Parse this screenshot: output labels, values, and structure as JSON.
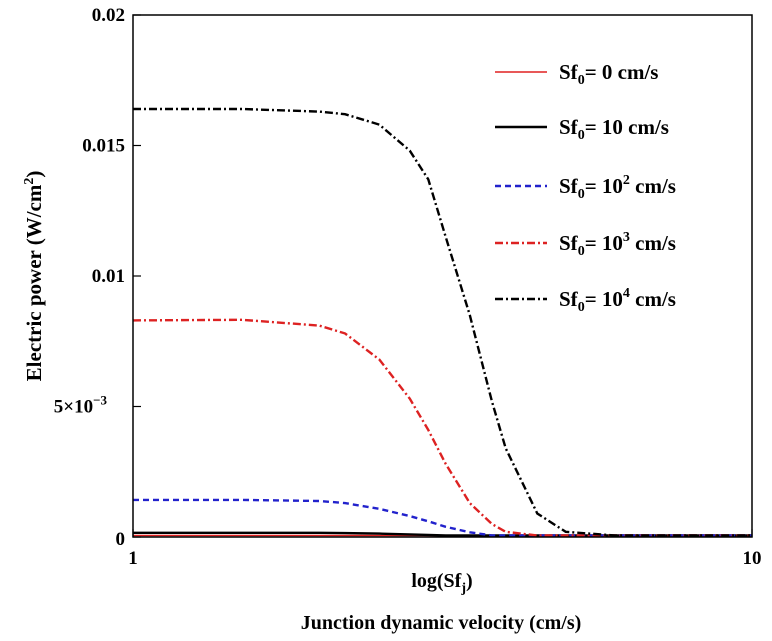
{
  "chart_data": {
    "type": "line",
    "xscale": "log",
    "xlim": [
      1,
      10
    ],
    "ylim": [
      0,
      0.02
    ],
    "xticks": [
      {
        "value": 1,
        "label": "1"
      },
      {
        "value": 10,
        "label": "10"
      }
    ],
    "yticks": [
      {
        "value": 0,
        "label": "0"
      },
      {
        "value": 0.005,
        "label": "5×10",
        "sup": "−3"
      },
      {
        "value": 0.01,
        "label": "0.01"
      },
      {
        "value": 0.015,
        "label": "0.015"
      },
      {
        "value": 0.02,
        "label": "0.02"
      }
    ],
    "xlabel": {
      "base": "log(Sf",
      "sub": "j",
      "end": ")"
    },
    "xcaption": "Junction dynamic velocity (cm/s)",
    "ylabel": {
      "pre": "Electric power (W/cm",
      "sup": "2",
      "end": ")"
    },
    "grid": false,
    "legend_position": "top-right",
    "x": [
      1,
      1.5,
      2,
      2.2,
      2.5,
      2.8,
      3,
      3.2,
      3.5,
      3.8,
      4,
      4.5,
      5,
      6,
      8,
      10
    ],
    "series": [
      {
        "name": {
          "pre": "Sf",
          "sub": "0",
          "post": "= 0 cm/s",
          "sup": ""
        },
        "color": "#e02020",
        "dash": "solid",
        "width": 1.4,
        "values": [
          0,
          0,
          0,
          0,
          0,
          0,
          0,
          0,
          0,
          0,
          0,
          0,
          0,
          0,
          0,
          0
        ]
      },
      {
        "name": {
          "pre": "Sf",
          "sub": "0",
          "post": "= 10 cm/s",
          "sup": ""
        },
        "color": "#000000",
        "dash": "solid",
        "width": 2.4,
        "values": [
          0.00016,
          0.00016,
          0.00016,
          0.00015,
          0.00013,
          0.0001,
          8e-05,
          5e-05,
          3e-05,
          1e-05,
          5e-06,
          0,
          0,
          0,
          0,
          0
        ]
      },
      {
        "name": {
          "pre": "Sf",
          "sub": "0",
          "post": " cm/s",
          "base": "= 10",
          "sup": "2"
        },
        "color": "#2222cc",
        "dash": "6,4",
        "width": 2.4,
        "values": [
          0.00142,
          0.00142,
          0.00138,
          0.0013,
          0.00108,
          0.0008,
          0.0006,
          0.00039,
          0.00018,
          6e-05,
          2e-05,
          0,
          0,
          0,
          0,
          0
        ]
      },
      {
        "name": {
          "pre": "Sf",
          "sub": "0",
          "post": " cm/s",
          "base": "= 10",
          "sup": "3"
        },
        "color": "#dd2222",
        "dash": "8,3,2,3",
        "width": 2.4,
        "values": [
          0.0083,
          0.00832,
          0.0081,
          0.0078,
          0.0068,
          0.0053,
          0.0041,
          0.0028,
          0.0013,
          0.0005,
          0.0002,
          0,
          0,
          0,
          0,
          0
        ]
      },
      {
        "name": {
          "pre": "Sf",
          "sub": "0",
          "post": " cm/s",
          "base": "= 10",
          "sup": "4"
        },
        "color": "#000000",
        "dash": "8,3,2,3",
        "width": 2.4,
        "values": [
          0.0164,
          0.0164,
          0.0163,
          0.0162,
          0.0158,
          0.0148,
          0.0137,
          0.0115,
          0.0085,
          0.0052,
          0.0034,
          0.0009,
          0.0002,
          0,
          0,
          0
        ]
      }
    ]
  }
}
